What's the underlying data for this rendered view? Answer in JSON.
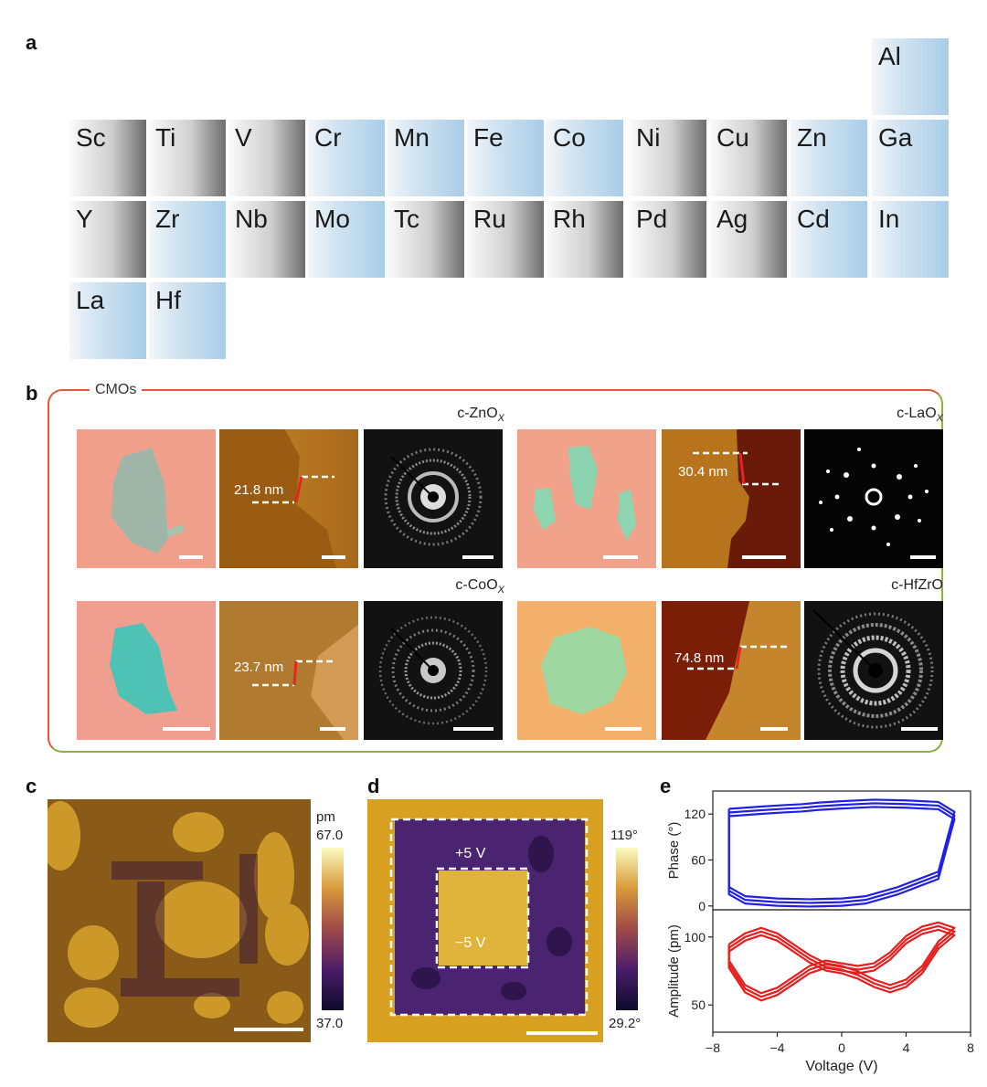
{
  "panels": {
    "a": "a",
    "b": "b",
    "c": "c",
    "d": "d",
    "e": "e"
  },
  "periodic": {
    "row0": [
      {
        "symbol": "Al",
        "shade": "blue"
      }
    ],
    "row1": [
      {
        "symbol": "Sc",
        "shade": "gray"
      },
      {
        "symbol": "Ti",
        "shade": "gray"
      },
      {
        "symbol": "V",
        "shade": "gray"
      },
      {
        "symbol": "Cr",
        "shade": "blue"
      },
      {
        "symbol": "Mn",
        "shade": "blue"
      },
      {
        "symbol": "Fe",
        "shade": "blue"
      },
      {
        "symbol": "Co",
        "shade": "blue"
      },
      {
        "symbol": "Ni",
        "shade": "gray"
      },
      {
        "symbol": "Cu",
        "shade": "gray"
      },
      {
        "symbol": "Zn",
        "shade": "blue"
      },
      {
        "symbol": "Ga",
        "shade": "blue"
      }
    ],
    "row2": [
      {
        "symbol": "Y",
        "shade": "gray"
      },
      {
        "symbol": "Zr",
        "shade": "blue"
      },
      {
        "symbol": "Nb",
        "shade": "gray"
      },
      {
        "symbol": "Mo",
        "shade": "blue"
      },
      {
        "symbol": "Tc",
        "shade": "gray"
      },
      {
        "symbol": "Ru",
        "shade": "gray"
      },
      {
        "symbol": "Rh",
        "shade": "gray"
      },
      {
        "symbol": "Pd",
        "shade": "gray"
      },
      {
        "symbol": "Ag",
        "shade": "gray"
      },
      {
        "symbol": "Cd",
        "shade": "blue"
      },
      {
        "symbol": "In",
        "shade": "blue"
      }
    ],
    "row3": [
      {
        "symbol": "La",
        "shade": "blue"
      },
      {
        "symbol": "Hf",
        "shade": "blue"
      }
    ]
  },
  "panel_b": {
    "group_label": "CMOs",
    "materials": [
      {
        "name": "c-ZnO",
        "sub": "X",
        "thickness": "21.8 nm"
      },
      {
        "name": "c-LaO",
        "sub": "X",
        "thickness": "30.4 nm"
      },
      {
        "name": "c-CoO",
        "sub": "X",
        "thickness": "23.7 nm"
      },
      {
        "name": "c-HfZrO",
        "sub": "",
        "thickness": "74.8 nm"
      }
    ]
  },
  "panel_c": {
    "unit": "pm",
    "max": "67.0",
    "min": "37.0"
  },
  "panel_d": {
    "max": "119°",
    "min": "29.2°",
    "outer": "+5 V",
    "inner": "−5 V"
  },
  "chart_data": {
    "type": "line",
    "xlabel": "Voltage (V)",
    "xlim": [
      -8,
      8
    ],
    "x_ticks": [
      "−8",
      "−4",
      "0",
      "4",
      "8"
    ],
    "subplots": [
      {
        "ylabel": "Phase (°)",
        "ylim": [
          -5,
          150
        ],
        "y_ticks": [
          "0",
          "60",
          "120"
        ],
        "color": "#1f1fe6",
        "series": [
          {
            "name": "phase-loop",
            "x": [
              -7,
              -5,
              -3.5,
              -2.5,
              -1.5,
              0,
              2,
              4,
              6,
              7,
              6,
              4.5,
              3.5,
              2.5,
              1.5,
              0,
              -2,
              -4,
              -6,
              -7
            ],
            "y": [
              122,
              125,
              127,
              128,
              130,
              132,
              134,
              133,
              131,
              118,
              40,
              28,
              20,
              14,
              8,
              5,
              4,
              5,
              8,
              20
            ]
          }
        ]
      },
      {
        "ylabel": "Amplitude (pm)",
        "ylim": [
          30,
          120
        ],
        "y_ticks": [
          "50",
          "100"
        ],
        "color": "#e61e1e",
        "series": [
          {
            "name": "amplitude-loop",
            "x": [
              -7,
              -6,
              -5,
              -4,
              -3,
              -2,
              -1,
              0,
              1,
              2,
              3,
              4,
              5,
              6,
              7,
              6,
              5,
              4,
              3,
              2,
              1,
              0,
              -1,
              -2,
              -3,
              -4,
              -5,
              -6,
              -7
            ],
            "y": [
              92,
              100,
              104,
              100,
              92,
              84,
              78,
              76,
              72,
              66,
              62,
              66,
              76,
              94,
              104,
              108,
              105,
              98,
              86,
              78,
              76,
              78,
              80,
              76,
              68,
              60,
              56,
              62,
              80
            ]
          }
        ]
      }
    ]
  }
}
